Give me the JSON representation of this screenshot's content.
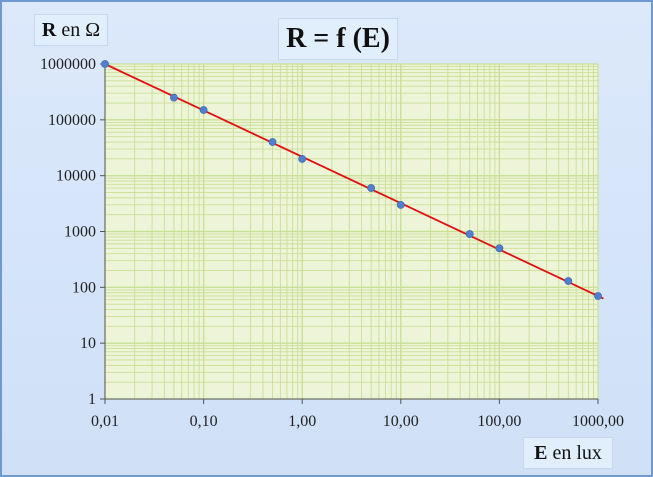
{
  "chart_data": {
    "type": "scatter",
    "title": "R = f (E)",
    "ylabel": {
      "bold": "R",
      "rest": " en Ω"
    },
    "xlabel": {
      "bold": "E",
      "rest": " en lux"
    },
    "x_scale": "log",
    "y_scale": "log",
    "xlim": [
      0.01,
      1000
    ],
    "ylim": [
      1,
      1000000
    ],
    "x_ticks": [
      0.01,
      0.1,
      1,
      10,
      100,
      1000
    ],
    "x_tick_labels": [
      "0,01",
      "0,10",
      "1,00",
      "10,00",
      "100,00",
      "1000,00"
    ],
    "y_ticks": [
      1,
      10,
      100,
      1000,
      10000,
      100000,
      1000000
    ],
    "y_tick_labels": [
      "1",
      "10",
      "100",
      "1000",
      "10000",
      "100000",
      "1000000"
    ],
    "grid": true,
    "series": [
      {
        "points": [
          {
            "x": 0.01,
            "y": 1000000
          },
          {
            "x": 0.05,
            "y": 250000
          },
          {
            "x": 0.1,
            "y": 150000
          },
          {
            "x": 0.5,
            "y": 40000
          },
          {
            "x": 1,
            "y": 20000
          },
          {
            "x": 5,
            "y": 6000
          },
          {
            "x": 10,
            "y": 3000
          },
          {
            "x": 50,
            "y": 900
          },
          {
            "x": 100,
            "y": 500
          },
          {
            "x": 500,
            "y": 130
          },
          {
            "x": 1000,
            "y": 70
          }
        ]
      }
    ],
    "trendline": {
      "x": [
        0.01,
        1000
      ],
      "y": [
        1000000,
        70
      ]
    },
    "colors": {
      "plot_background": "#eef4d8",
      "grid": "#c9df96",
      "trendline": "#e01010",
      "points": "#4f7fce",
      "frame_border": "#6f9ad0"
    }
  }
}
